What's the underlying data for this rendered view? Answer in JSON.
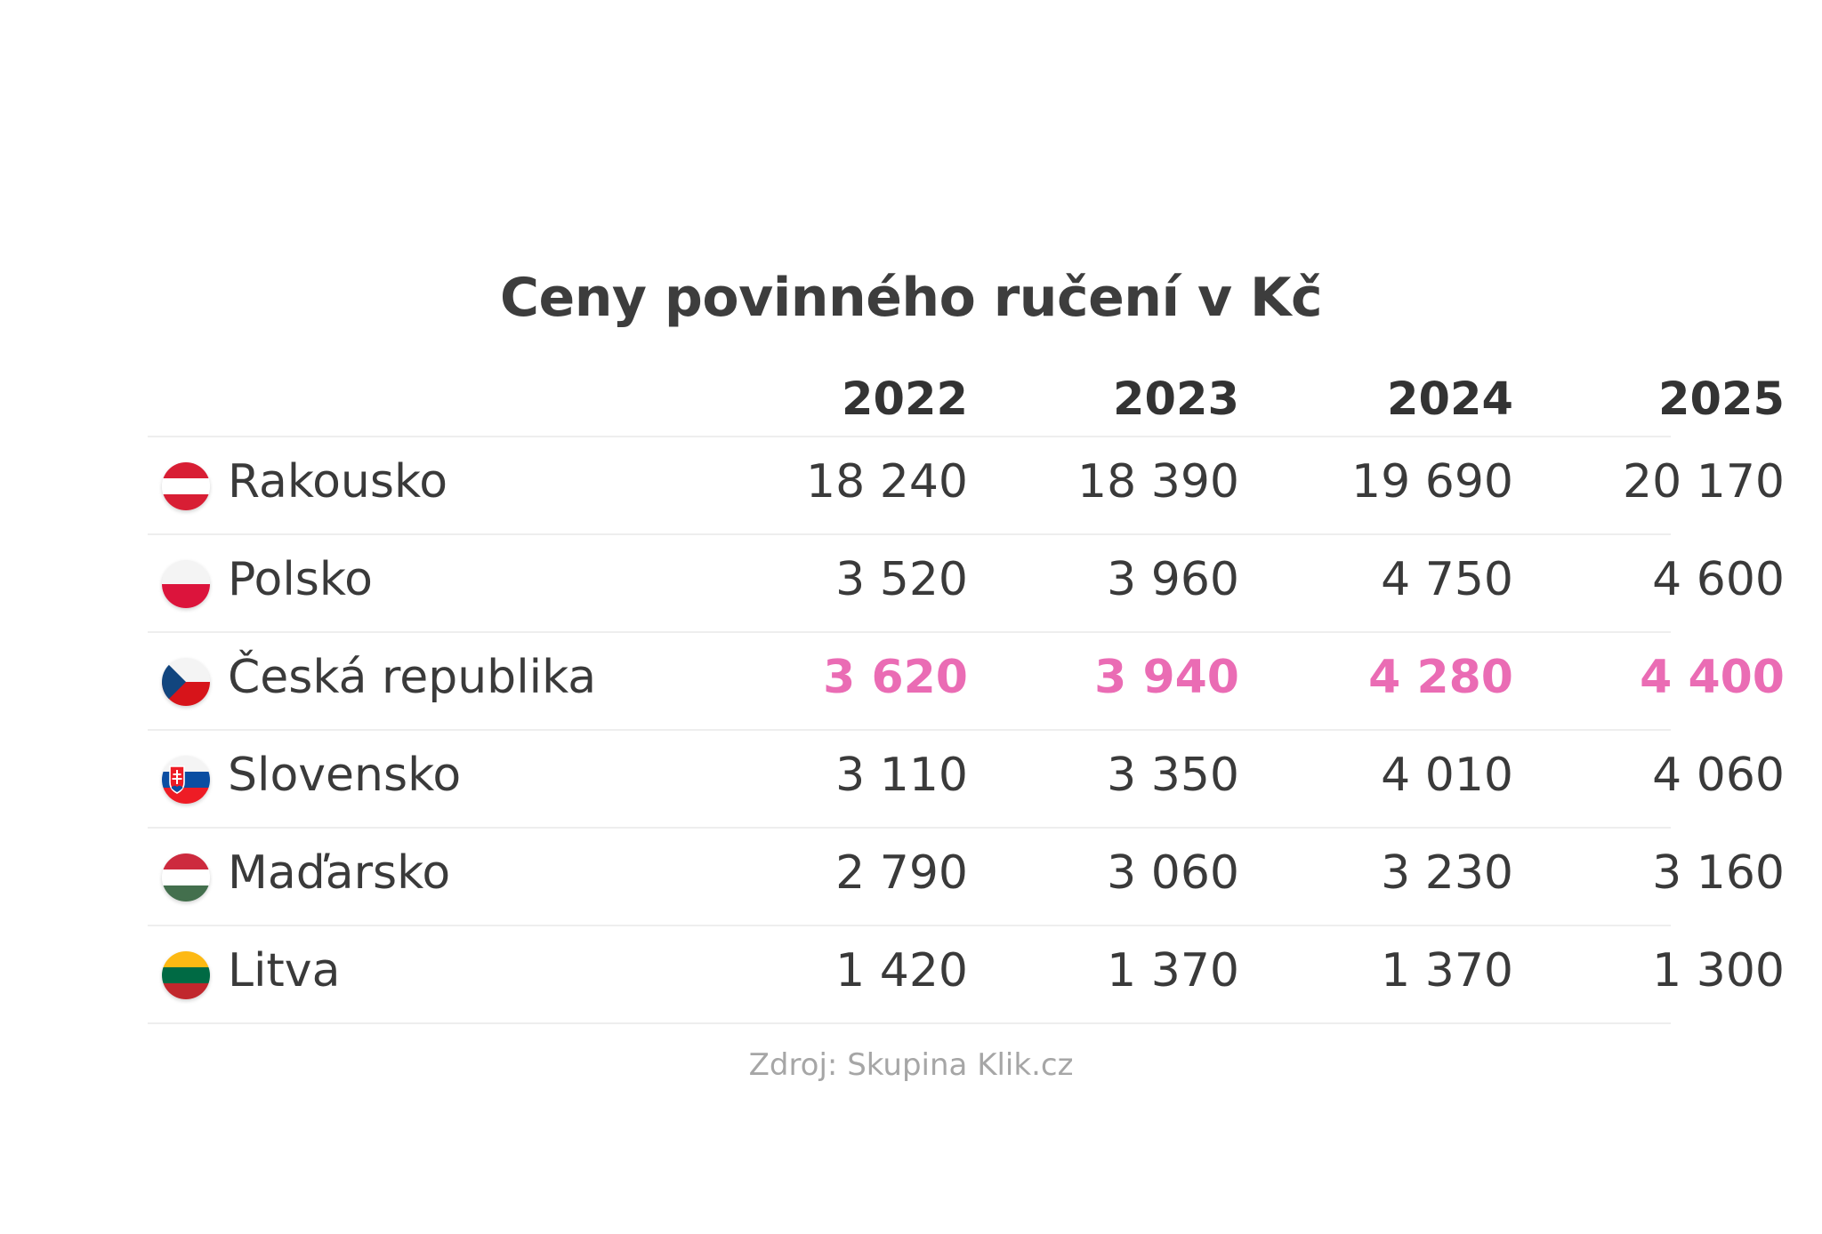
{
  "chart_data": {
    "type": "table",
    "title": "Ceny povinného ručení v Kč",
    "columns": [
      "2022",
      "2023",
      "2024",
      "2025"
    ],
    "rows": [
      {
        "country": "Rakousko",
        "flag": "austria-flag",
        "values": [
          "18 240",
          "18 390",
          "19 690",
          "20 170"
        ],
        "highlight": false
      },
      {
        "country": "Polsko",
        "flag": "poland-flag",
        "values": [
          "3 520",
          "3 960",
          "4 750",
          "4 600"
        ],
        "highlight": false
      },
      {
        "country": "Česká republika",
        "flag": "czech-flag",
        "values": [
          "3 620",
          "3 940",
          "4 280",
          "4 400"
        ],
        "highlight": true
      },
      {
        "country": "Slovensko",
        "flag": "slovakia-flag",
        "values": [
          "3 110",
          "3 350",
          "4 010",
          "4 060"
        ],
        "highlight": false
      },
      {
        "country": "Maďarsko",
        "flag": "hungary-flag",
        "values": [
          "2 790",
          "3 060",
          "3 230",
          "3 160"
        ],
        "highlight": false
      },
      {
        "country": "Litva",
        "flag": "lithuania-flag",
        "values": [
          "1 420",
          "1 370",
          "1 370",
          "1 300"
        ],
        "highlight": false
      }
    ],
    "source": "Zdroj: Skupina Klik.cz",
    "colors": {
      "highlight": "#ea6cb4",
      "text": "#3a3a3a",
      "source": "#a6a6a6"
    }
  }
}
